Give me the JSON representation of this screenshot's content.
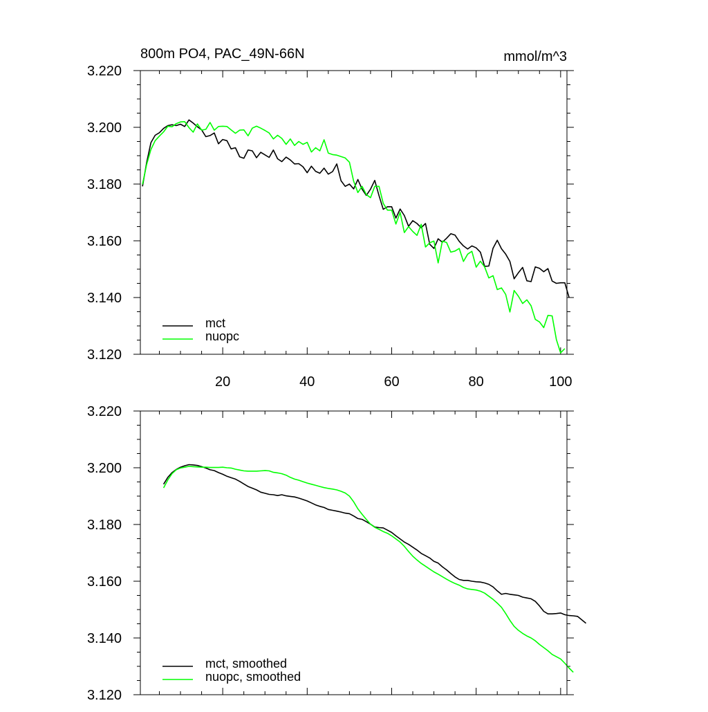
{
  "chart_data": [
    {
      "type": "line",
      "title": "800m PO4, PAC_49N-66N",
      "units": "mmol/m^3",
      "xlim": [
        0.5,
        101.5
      ],
      "ylim": [
        3.12,
        3.22
      ],
      "yticks": [
        "3.220",
        "3.200",
        "3.180",
        "3.160",
        "3.140",
        "3.120"
      ],
      "xticks": [
        "20",
        "40",
        "60",
        "80",
        "100"
      ],
      "legend": "bottom-left",
      "series": [
        {
          "name": "mct",
          "color": "#000000",
          "x_start": 1,
          "values": [
            3.1792,
            3.1877,
            3.1946,
            3.1972,
            3.1981,
            3.1996,
            3.2006,
            3.2009,
            3.2006,
            3.2011,
            3.2003,
            3.2026,
            3.2015,
            3.2002,
            3.1991,
            3.1967,
            3.1971,
            3.198,
            3.1942,
            3.1957,
            3.1953,
            3.1924,
            3.1928,
            3.1896,
            3.1891,
            3.192,
            3.1917,
            3.1893,
            3.1912,
            3.1903,
            3.1894,
            3.192,
            3.1889,
            3.1879,
            3.1895,
            3.1885,
            3.1871,
            3.1872,
            3.1861,
            3.184,
            3.1863,
            3.1845,
            3.1838,
            3.1856,
            3.1835,
            3.1844,
            3.1871,
            3.1812,
            3.1792,
            3.18,
            3.1783,
            3.1816,
            3.1782,
            3.176,
            3.1782,
            3.1813,
            3.1759,
            3.1711,
            3.172,
            3.172,
            3.168,
            3.1712,
            3.1689,
            3.1651,
            3.1671,
            3.1661,
            3.1646,
            3.1661,
            3.1588,
            3.1573,
            3.1607,
            3.1595,
            3.1609,
            3.1625,
            3.162,
            3.1598,
            3.1582,
            3.1571,
            3.1582,
            3.1575,
            3.156,
            3.151,
            3.1511,
            3.1574,
            3.1602,
            3.1572,
            3.1553,
            3.1527,
            3.1466,
            3.1487,
            3.1506,
            3.1459,
            3.1456,
            3.1508,
            3.1503,
            3.1491,
            3.1502,
            3.1458,
            3.145,
            3.1452,
            3.1452,
            3.14
          ]
        },
        {
          "name": "nuopc",
          "color": "#00ff00",
          "x_start": 1,
          "values": [
            3.1799,
            3.187,
            3.1922,
            3.1953,
            3.1969,
            3.1984,
            3.2004,
            3.2002,
            3.2013,
            3.2019,
            3.202,
            3.1999,
            3.1983,
            3.2012,
            3.199,
            3.1993,
            3.2017,
            3.199,
            3.2003,
            3.2004,
            3.2003,
            3.1991,
            3.1979,
            3.199,
            3.1991,
            3.197,
            3.1997,
            3.2004,
            3.1997,
            3.1989,
            3.198,
            3.1959,
            3.1972,
            3.1961,
            3.194,
            3.1959,
            3.1936,
            3.195,
            3.194,
            3.1947,
            3.1913,
            3.1928,
            3.1917,
            3.1956,
            3.1909,
            3.1904,
            3.1902,
            3.1897,
            3.1892,
            3.1877,
            3.181,
            3.177,
            3.1792,
            3.1763,
            3.1752,
            3.1792,
            3.1792,
            3.1732,
            3.1708,
            3.1708,
            3.1659,
            3.17,
            3.1629,
            3.165,
            3.1633,
            3.1619,
            3.1658,
            3.1578,
            3.1593,
            3.1599,
            3.1522,
            3.1599,
            3.1594,
            3.156,
            3.1564,
            3.1573,
            3.1527,
            3.1553,
            3.1563,
            3.1507,
            3.1528,
            3.1508,
            3.1469,
            3.1477,
            3.1428,
            3.1434,
            3.1411,
            3.1349,
            3.1425,
            3.1405,
            3.1379,
            3.1392,
            3.1371,
            3.1323,
            3.1314,
            3.1294,
            3.1337,
            3.1335,
            3.1252,
            3.1205,
            3.122
          ]
        }
      ]
    },
    {
      "type": "line",
      "title": "",
      "units": "",
      "xlim": [
        0.5,
        101.5
      ],
      "ylim": [
        3.12,
        3.22
      ],
      "yticks": [
        "3.220",
        "3.200",
        "3.180",
        "3.160",
        "3.140",
        "3.120"
      ],
      "xticks": [],
      "legend": "bottom-left",
      "series": [
        {
          "name": "mct, smoothed",
          "color": "#000000",
          "x_start": 6,
          "values": [
            3.1942,
            3.1966,
            3.1983,
            3.1994,
            3.2002,
            3.2007,
            3.2011,
            3.201,
            3.2008,
            3.2004,
            3.1999,
            3.1993,
            3.199,
            3.1983,
            3.1977,
            3.197,
            3.1965,
            3.196,
            3.1952,
            3.1943,
            3.1934,
            3.1928,
            3.1922,
            3.1914,
            3.191,
            3.1906,
            3.1905,
            3.1902,
            3.1905,
            3.1901,
            3.1899,
            3.1897,
            3.1893,
            3.1888,
            3.1883,
            3.1876,
            3.1869,
            3.1864,
            3.186,
            3.1853,
            3.185,
            3.1847,
            3.1844,
            3.184,
            3.1838,
            3.183,
            3.1821,
            3.1818,
            3.181,
            3.1801,
            3.1791,
            3.1789,
            3.1788,
            3.178,
            3.1772,
            3.176,
            3.1749,
            3.1738,
            3.173,
            3.172,
            3.171,
            3.1698,
            3.169,
            3.1682,
            3.167,
            3.1664,
            3.1651,
            3.164,
            3.1627,
            3.1615,
            3.1606,
            3.1603,
            3.1603,
            3.16,
            3.1598,
            3.1597,
            3.1594,
            3.1589,
            3.158,
            3.1566,
            3.1554,
            3.1557,
            3.1554,
            3.1552,
            3.155,
            3.1544,
            3.1541,
            3.1538,
            3.1529,
            3.1513,
            3.1494,
            3.1485,
            3.1485,
            3.1486,
            3.1488,
            3.1482,
            3.1479,
            3.1478,
            3.1476,
            3.1464,
            3.1452
          ]
        },
        {
          "name": "nuopc, smoothed",
          "color": "#00ff00",
          "x_start": 6,
          "values": [
            3.1929,
            3.1957,
            3.1979,
            3.1993,
            3.1999,
            3.2002,
            3.2005,
            3.2004,
            3.2003,
            3.2002,
            3.2002,
            3.2001,
            3.2001,
            3.2001,
            3.2002,
            3.2,
            3.1999,
            3.1995,
            3.1992,
            3.1989,
            3.1988,
            3.1988,
            3.1988,
            3.1989,
            3.199,
            3.1989,
            3.1984,
            3.1982,
            3.1979,
            3.1974,
            3.1966,
            3.196,
            3.1956,
            3.1951,
            3.1946,
            3.1942,
            3.1938,
            3.1934,
            3.193,
            3.1927,
            3.1925,
            3.1922,
            3.1917,
            3.1911,
            3.19,
            3.188,
            3.1855,
            3.1836,
            3.1818,
            3.1801,
            3.179,
            3.1783,
            3.1775,
            3.1769,
            3.176,
            3.1749,
            3.1738,
            3.1723,
            3.1705,
            3.1688,
            3.1675,
            3.1663,
            3.1653,
            3.1643,
            3.1633,
            3.1625,
            3.1616,
            3.1607,
            3.1599,
            3.1592,
            3.1586,
            3.1578,
            3.1573,
            3.1571,
            3.1569,
            3.1565,
            3.1558,
            3.1547,
            3.1536,
            3.1523,
            3.1508,
            3.1486,
            3.1462,
            3.1441,
            3.1427,
            3.1416,
            3.1407,
            3.14,
            3.139,
            3.1377,
            3.1366,
            3.1355,
            3.1342,
            3.1334,
            3.1326,
            3.1311,
            3.1294,
            3.1279
          ]
        }
      ]
    }
  ]
}
